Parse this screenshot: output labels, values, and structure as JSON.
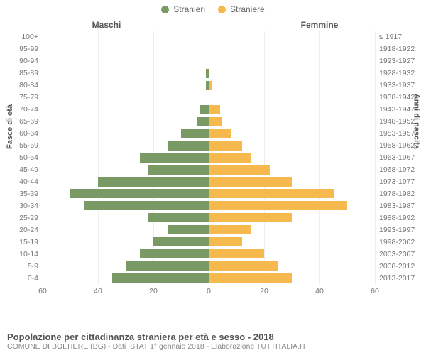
{
  "legend": {
    "male": {
      "label": "Stranieri",
      "color": "#799a65"
    },
    "female": {
      "label": "Straniere",
      "color": "#f6b94d"
    }
  },
  "columns": {
    "left": "Maschi",
    "right": "Femmine"
  },
  "axis_titles": {
    "left": "Fasce di età",
    "right": "Anni di nascita"
  },
  "chart": {
    "type": "population-pyramid",
    "x_max": 60,
    "x_ticks": [
      60,
      40,
      20,
      0,
      20,
      40,
      60
    ],
    "grid_color": "#eeeeee",
    "male_color": "#799a65",
    "female_color": "#f6b94d",
    "background_color": "#ffffff",
    "label_fontsize": 10.5,
    "rows": [
      {
        "age": "100+",
        "birth": "≤ 1917",
        "m": 0,
        "f": 0
      },
      {
        "age": "95-99",
        "birth": "1918-1922",
        "m": 0,
        "f": 0
      },
      {
        "age": "90-94",
        "birth": "1923-1927",
        "m": 0,
        "f": 0
      },
      {
        "age": "85-89",
        "birth": "1928-1932",
        "m": 1,
        "f": 0
      },
      {
        "age": "80-84",
        "birth": "1933-1937",
        "m": 1,
        "f": 1
      },
      {
        "age": "75-79",
        "birth": "1938-1942",
        "m": 0,
        "f": 0
      },
      {
        "age": "70-74",
        "birth": "1943-1947",
        "m": 3,
        "f": 4
      },
      {
        "age": "65-69",
        "birth": "1948-1952",
        "m": 4,
        "f": 5
      },
      {
        "age": "60-64",
        "birth": "1953-1957",
        "m": 10,
        "f": 8
      },
      {
        "age": "55-59",
        "birth": "1958-1962",
        "m": 15,
        "f": 12
      },
      {
        "age": "50-54",
        "birth": "1963-1967",
        "m": 25,
        "f": 15
      },
      {
        "age": "45-49",
        "birth": "1968-1972",
        "m": 22,
        "f": 22
      },
      {
        "age": "40-44",
        "birth": "1973-1977",
        "m": 40,
        "f": 30
      },
      {
        "age": "35-39",
        "birth": "1978-1982",
        "m": 50,
        "f": 45
      },
      {
        "age": "30-34",
        "birth": "1983-1987",
        "m": 45,
        "f": 50
      },
      {
        "age": "25-29",
        "birth": "1988-1992",
        "m": 22,
        "f": 30
      },
      {
        "age": "20-24",
        "birth": "1993-1997",
        "m": 15,
        "f": 15
      },
      {
        "age": "15-19",
        "birth": "1998-2002",
        "m": 20,
        "f": 12
      },
      {
        "age": "10-14",
        "birth": "2003-2007",
        "m": 25,
        "f": 20
      },
      {
        "age": "5-9",
        "birth": "2008-2012",
        "m": 30,
        "f": 25
      },
      {
        "age": "0-4",
        "birth": "2013-2017",
        "m": 35,
        "f": 30
      }
    ]
  },
  "footer": {
    "title": "Popolazione per cittadinanza straniera per età e sesso - 2018",
    "subtitle": "COMUNE DI BOLTIERE (BG) - Dati ISTAT 1° gennaio 2018 - Elaborazione TUTTITALIA.IT"
  }
}
